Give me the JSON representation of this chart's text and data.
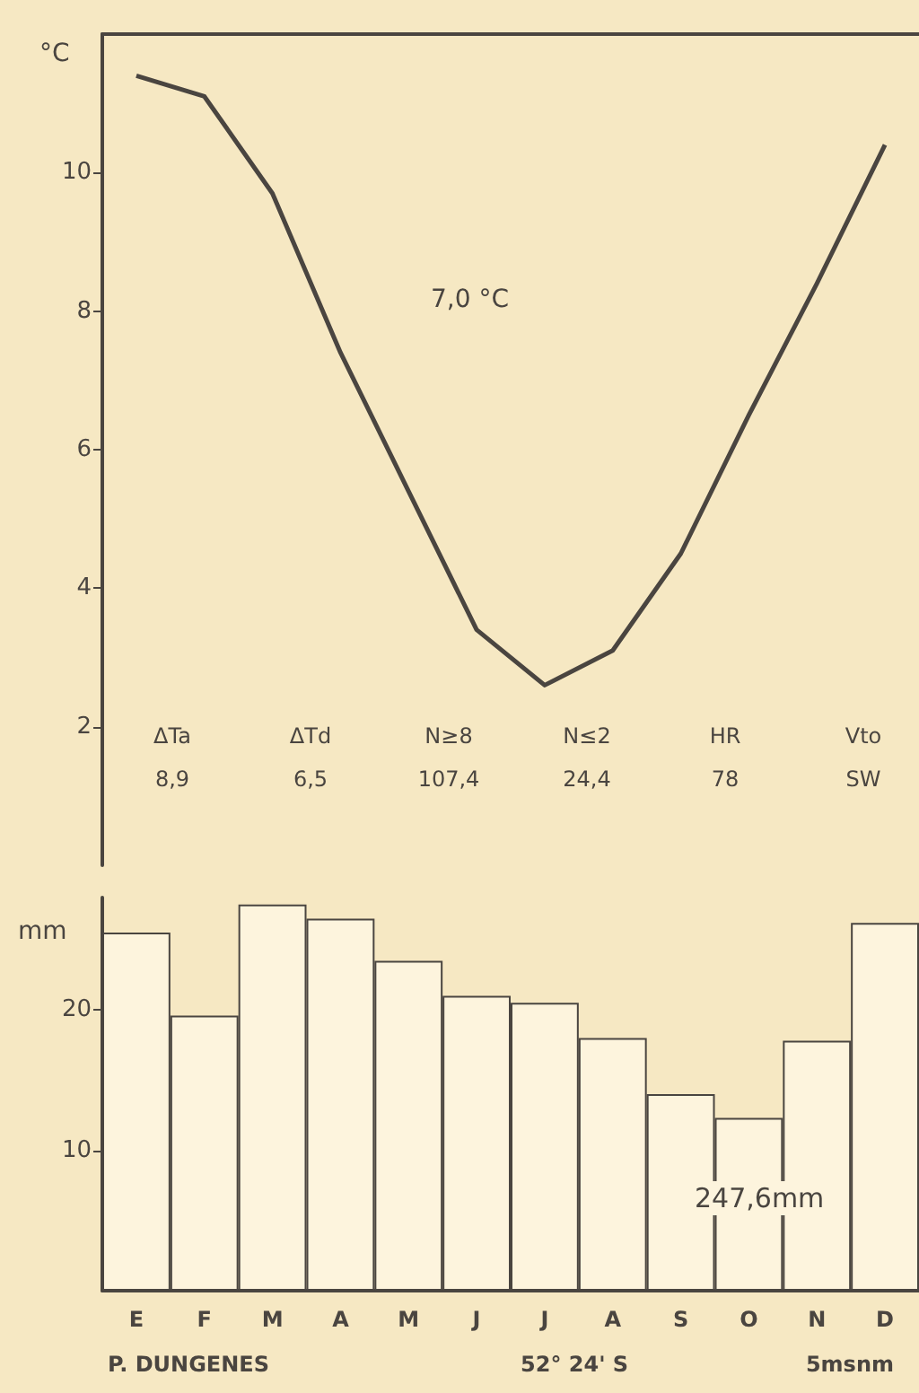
{
  "chart_data": [
    {
      "type": "line",
      "ylabel": "°C",
      "categories": [
        null,
        null,
        null,
        null,
        null,
        null,
        null,
        null,
        null,
        null,
        null,
        null
      ],
      "values": [
        11.4,
        11.1,
        9.7,
        7.4,
        5.4,
        3.4,
        2.6,
        3.1,
        4.5,
        6.5,
        8.4,
        10.4
      ],
      "color": "#4a4540",
      "ylim": [
        0,
        12
      ],
      "yticks": [
        2,
        4,
        6,
        8,
        10
      ],
      "grid": false,
      "marker": "none",
      "line_style": "solid",
      "annotations": [
        "7,0 °C",
        "ΔTa",
        "ΔTd",
        "N≥8",
        "N≤2",
        "HR",
        "Vto",
        "8,9",
        "6,5",
        "107,4",
        "24,4",
        "78",
        "SW"
      ]
    },
    {
      "type": "bar",
      "ylabel": "mm",
      "categories": [
        "E",
        "F",
        "M",
        "A",
        "M",
        "J",
        "J",
        "A",
        "S",
        "O",
        "N",
        "D"
      ],
      "values": [
        25.5,
        19.6,
        27.5,
        26.5,
        23.5,
        21.0,
        20.5,
        18.0,
        14.0,
        12.3,
        17.8,
        26.2
      ],
      "color": "#fdf4dd",
      "ylim": [
        0,
        28
      ],
      "yticks": [
        10,
        20
      ],
      "grid": false,
      "annotations": [
        "247,6mm",
        "P. DUNGENES",
        "52° 24' S",
        "5msnm"
      ]
    }
  ]
}
